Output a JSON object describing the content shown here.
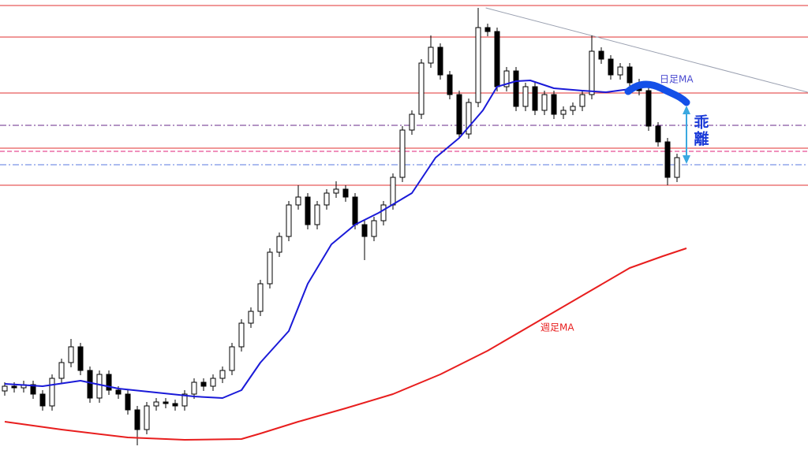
{
  "chart_data": {
    "type": "candlestick",
    "ylim": [
      0,
      576
    ],
    "up_color": "#ffffff",
    "down_color": "#000000",
    "open": [
      80,
      86,
      84,
      88,
      76,
      61,
      96,
      116,
      136,
      106,
      71,
      101,
      81,
      76,
      56,
      31,
      61,
      66,
      64,
      61,
      76,
      91,
      86,
      96,
      106,
      136,
      166,
      181,
      216,
      256,
      276,
      316,
      326,
      291,
      316,
      331,
      336,
      326,
      291,
      276,
      296,
      316,
      351,
      411,
      431,
      496,
      516,
      481,
      456,
      406,
      446,
      541,
      536,
      466,
      486,
      441,
      466,
      436,
      456,
      431,
      436,
      441,
      456,
      511,
      501,
      481,
      491,
      471,
      461,
      416,
      396,
      351
    ],
    "high": [
      91,
      91,
      93,
      93,
      81,
      101,
      121,
      146,
      141,
      111,
      106,
      106,
      86,
      81,
      61,
      66,
      71,
      71,
      69,
      81,
      96,
      96,
      101,
      111,
      141,
      171,
      186,
      221,
      261,
      281,
      321,
      341,
      331,
      321,
      336,
      346,
      341,
      331,
      296,
      301,
      321,
      356,
      416,
      436,
      501,
      531,
      521,
      486,
      461,
      451,
      566,
      546,
      541,
      491,
      491,
      471,
      471,
      461,
      461,
      441,
      446,
      461,
      531,
      516,
      506,
      496,
      496,
      476,
      466,
      421,
      401,
      381
    ],
    "low": [
      74,
      78,
      78,
      70,
      55,
      55,
      90,
      110,
      100,
      65,
      65,
      75,
      70,
      50,
      11,
      25,
      55,
      58,
      55,
      55,
      70,
      80,
      80,
      90,
      100,
      130,
      160,
      175,
      210,
      250,
      270,
      310,
      285,
      285,
      310,
      325,
      320,
      285,
      246,
      270,
      290,
      310,
      345,
      405,
      425,
      490,
      475,
      450,
      400,
      400,
      440,
      530,
      460,
      460,
      435,
      435,
      430,
      430,
      425,
      425,
      430,
      435,
      450,
      495,
      475,
      475,
      465,
      455,
      410,
      390,
      341,
      345
    ],
    "close": [
      86,
      84,
      88,
      76,
      61,
      96,
      116,
      136,
      106,
      71,
      101,
      81,
      76,
      56,
      31,
      61,
      66,
      64,
      61,
      76,
      91,
      86,
      96,
      106,
      136,
      166,
      181,
      216,
      256,
      276,
      316,
      326,
      291,
      316,
      331,
      336,
      326,
      291,
      276,
      296,
      316,
      351,
      411,
      431,
      496,
      516,
      481,
      456,
      406,
      446,
      541,
      536,
      466,
      486,
      441,
      466,
      436,
      456,
      431,
      436,
      441,
      456,
      511,
      501,
      481,
      491,
      471,
      461,
      416,
      396,
      351,
      376
    ],
    "series": [
      {
        "name": "日足MA",
        "color": "#1a1ad8",
        "x": [
          0,
          4,
          8,
          12,
          16,
          20,
          23,
          25,
          27,
          30,
          32,
          34.5,
          37,
          39.5,
          43,
          45.5,
          48,
          50.5,
          52,
          54,
          55.5,
          58,
          61,
          63.5,
          66,
          68,
          70,
          72
        ],
        "values": [
          89,
          86,
          93,
          83,
          78,
          73,
          71,
          81,
          116,
          156,
          216,
          266,
          291,
          306,
          331,
          376,
          401,
          436,
          466,
          473,
          474,
          464,
          461,
          459,
          463,
          468,
          461,
          446
        ]
      },
      {
        "name": "週足MA",
        "color": "#e81e1e",
        "x": [
          0,
          6,
          13,
          19,
          25,
          27,
          31,
          36,
          41,
          46,
          51,
          56,
          61,
          66,
          69.5,
          72
        ],
        "values": [
          41,
          31,
          21,
          18,
          19,
          26,
          41,
          58,
          76,
          101,
          131,
          166,
          201,
          236,
          251,
          261
        ]
      }
    ],
    "levels": [
      {
        "value": 569,
        "color": "#e03030",
        "style": "solid"
      },
      {
        "value": 529,
        "color": "#e03030",
        "style": "solid"
      },
      {
        "value": 458,
        "color": "#e03030",
        "style": "solid"
      },
      {
        "value": 417,
        "color": "#6a2a8a",
        "style": "dashdot"
      },
      {
        "value": 388,
        "color": "#e03030",
        "style": "solid"
      },
      {
        "value": 384,
        "color": "#e0207a",
        "style": "dashed"
      },
      {
        "value": 367,
        "color": "#5a7ae0",
        "style": "dashdot"
      },
      {
        "value": 341,
        "color": "#e03030",
        "style": "solid"
      }
    ],
    "trendline": {
      "x": [
        50.8,
        84.8
      ],
      "values": [
        566,
        459
      ],
      "color": "#9aa0b0"
    },
    "annotation": "乖離"
  }
}
